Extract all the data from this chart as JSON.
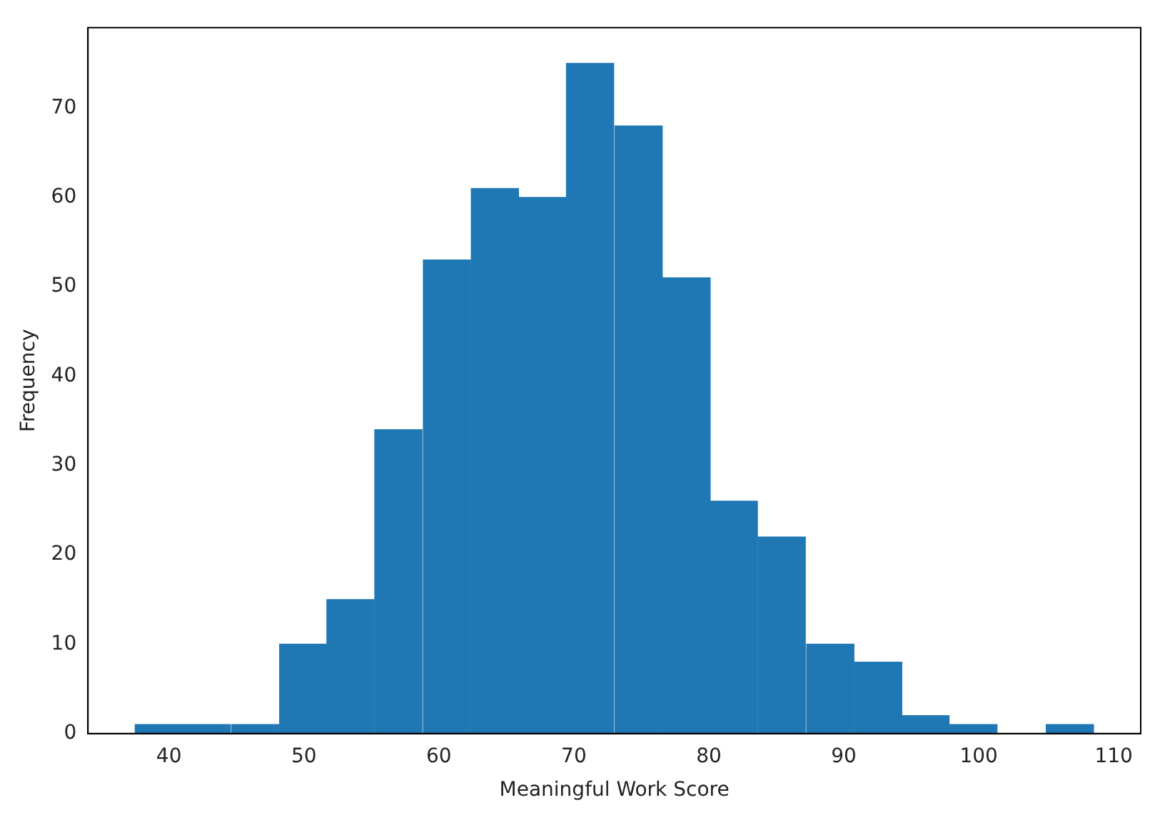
{
  "chart_data": {
    "type": "histogram",
    "xlabel": "Meaningful Work Score",
    "ylabel": "Frequency",
    "bins": [
      37.5,
      41.0,
      44.6,
      48.2,
      51.7,
      55.2,
      58.8,
      62.4,
      65.9,
      69.4,
      73.0,
      76.6,
      80.1,
      83.6,
      87.2,
      90.8,
      94.3,
      97.8,
      101.4,
      105.0,
      108.5
    ],
    "values": [
      1,
      1,
      1,
      10,
      15,
      34,
      53,
      61,
      60,
      75,
      68,
      51,
      26,
      22,
      10,
      8,
      2,
      1,
      0,
      1
    ],
    "color": "#1f77b4",
    "xlim": [
      34,
      112
    ],
    "xticks": [
      40,
      50,
      60,
      70,
      80,
      90,
      100,
      110
    ],
    "ylim": [
      0,
      79
    ],
    "yticks": [
      0,
      10,
      20,
      30,
      40,
      50,
      60,
      70
    ],
    "grid": false
  }
}
